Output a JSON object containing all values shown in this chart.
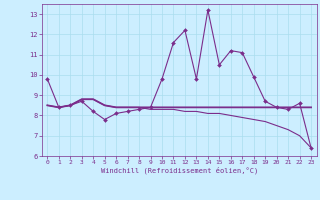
{
  "xlabel": "Windchill (Refroidissement éolien,°C)",
  "x": [
    0,
    1,
    2,
    3,
    4,
    5,
    6,
    7,
    8,
    9,
    10,
    11,
    12,
    13,
    14,
    15,
    16,
    17,
    18,
    19,
    20,
    21,
    22,
    23
  ],
  "line1": [
    9.8,
    8.4,
    8.5,
    8.7,
    8.2,
    7.8,
    8.1,
    8.2,
    8.3,
    8.4,
    9.8,
    11.6,
    12.2,
    9.8,
    13.2,
    10.5,
    11.2,
    11.1,
    9.9,
    8.7,
    8.4,
    8.3,
    8.6,
    6.4
  ],
  "line2": [
    8.5,
    8.4,
    8.5,
    8.8,
    8.8,
    8.5,
    8.4,
    8.4,
    8.4,
    8.4,
    8.4,
    8.4,
    8.4,
    8.4,
    8.4,
    8.4,
    8.4,
    8.4,
    8.4,
    8.4,
    8.4,
    8.4,
    8.4,
    8.4
  ],
  "line3": [
    8.5,
    8.4,
    8.5,
    8.8,
    8.8,
    8.5,
    8.4,
    8.4,
    8.4,
    8.3,
    8.3,
    8.3,
    8.2,
    8.2,
    8.1,
    8.1,
    8.0,
    7.9,
    7.8,
    7.7,
    7.5,
    7.3,
    7.0,
    6.4
  ],
  "line_color": "#7b2d8b",
  "bg_color": "#cceeff",
  "grid_color": "#aaddee",
  "line_width": 0.8,
  "marker_size": 2.0,
  "ylim": [
    6,
    13.5
  ],
  "yticks": [
    6,
    7,
    8,
    9,
    10,
    11,
    12,
    13
  ],
  "xlim": [
    -0.5,
    23.5
  ],
  "xticks": [
    0,
    1,
    2,
    3,
    4,
    5,
    6,
    7,
    8,
    9,
    10,
    11,
    12,
    13,
    14,
    15,
    16,
    17,
    18,
    19,
    20,
    21,
    22,
    23
  ]
}
